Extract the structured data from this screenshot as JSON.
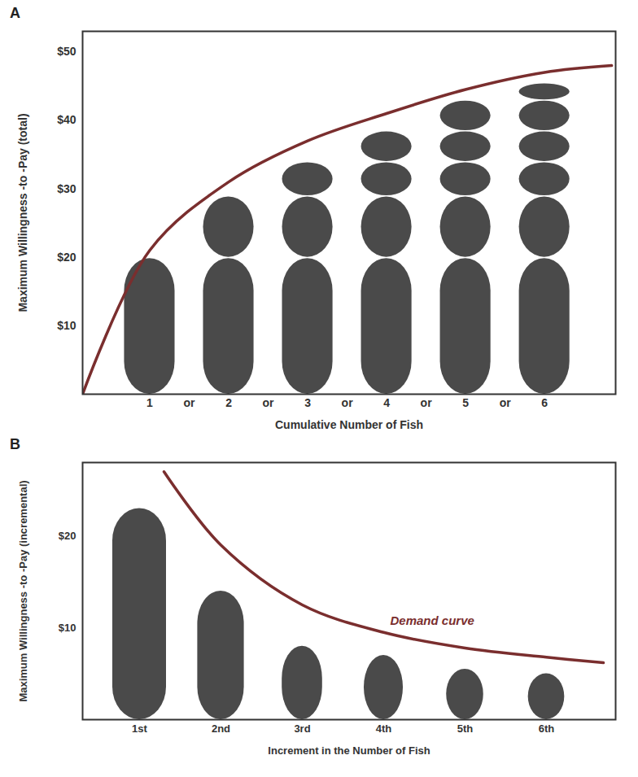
{
  "chart_data": [
    {
      "type": "bar",
      "title": "A",
      "stacked": true,
      "x": [
        1,
        2,
        3,
        4,
        5,
        6
      ],
      "values": [
        20,
        9,
        5,
        4.5,
        4.5,
        2.5
      ],
      "color": "#4a4a4a",
      "xlim": [
        0.15,
        6.9
      ],
      "xticks": [
        1,
        2,
        3,
        4,
        5,
        6
      ],
      "ylim": [
        0,
        53
      ],
      "yticks": [
        {
          "value": 10,
          "label": "$10"
        },
        {
          "value": 20,
          "label": "$20"
        },
        {
          "value": 30,
          "label": "$30"
        },
        {
          "value": 40,
          "label": "$40"
        },
        {
          "value": 50,
          "label": "$50"
        }
      ],
      "x_label": "Cumulative Number of Fish",
      "y_label": "Maximum Willingness -to -Pay (total)",
      "annotations": [
        "or"
      ],
      "curve": {
        "type": "line",
        "color": "#7a2e2e",
        "x": [
          0.15,
          1,
          2,
          3,
          4,
          5,
          6,
          6.85
        ],
        "values": [
          0,
          21,
          31,
          37,
          41,
          44.5,
          47,
          48
        ]
      }
    },
    {
      "type": "bar",
      "title": "B",
      "categories": [
        "1st",
        "2nd",
        "3rd",
        "4th",
        "5th",
        "6th"
      ],
      "values": [
        23,
        14,
        8,
        7,
        5.5,
        5
      ],
      "color": "#4a4a4a",
      "xlim": [
        0.3,
        6.85
      ],
      "ylim": [
        0,
        28
      ],
      "yticks": [
        {
          "value": 10,
          "label": "$10"
        },
        {
          "value": 20,
          "label": "$20"
        }
      ],
      "x_label": "Increment in the Number of Fish",
      "y_label": "Maximum Willingness -to -Pay (incremental)",
      "curve": {
        "type": "line",
        "name": "Demand curve",
        "color": "#7a2e2e",
        "x": [
          1.3,
          2,
          3,
          4,
          5,
          6,
          6.7
        ],
        "values": [
          27,
          19,
          12.5,
          9.5,
          7.8,
          6.8,
          6.2
        ]
      }
    }
  ]
}
